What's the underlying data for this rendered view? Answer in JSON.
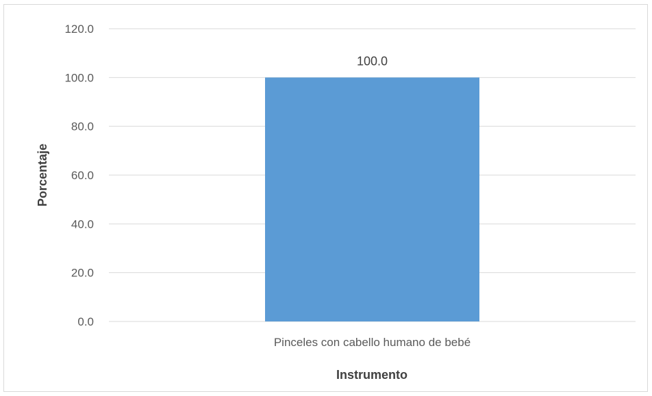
{
  "chart_data": {
    "type": "bar",
    "title": "",
    "xlabel": "Instrumento",
    "ylabel": "Porcentaje",
    "categories": [
      "Pinceles con cabello humano de bebé"
    ],
    "values": [
      100.0
    ],
    "data_labels": [
      "100.0"
    ],
    "ylim": [
      0,
      120
    ],
    "yticks": [
      "0.0",
      "20.0",
      "40.0",
      "60.0",
      "80.0",
      "100.0",
      "120.0"
    ],
    "grid": true,
    "legend": "none",
    "bar_color": "#5b9bd5"
  }
}
